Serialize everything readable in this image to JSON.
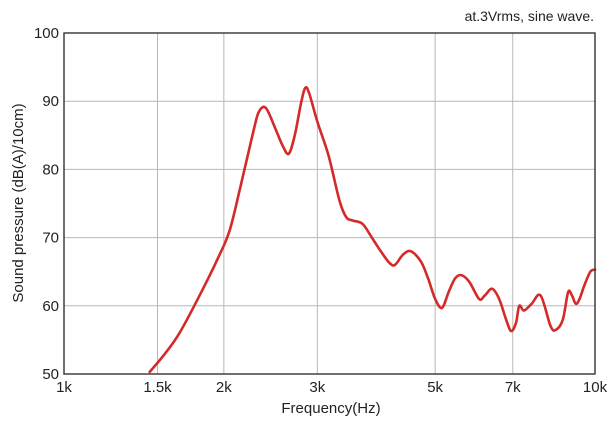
{
  "colors": {
    "line": "#d42a2a",
    "grid": "#b8b8b8",
    "frame": "#333333",
    "text": "#222222"
  },
  "chart_data": {
    "type": "line",
    "annotation": "at.3Vrms, sine wave.",
    "xlabel": "Frequency(Hz)",
    "ylabel": "Sound pressure (dB(A)/10cm)",
    "xscale": "log",
    "xlim": [
      1000,
      10000
    ],
    "ylim": [
      50,
      100
    ],
    "grid": true,
    "x_ticks": [
      {
        "value": 1000,
        "label": "1k"
      },
      {
        "value": 1500,
        "label": "1.5k"
      },
      {
        "value": 2000,
        "label": "2k"
      },
      {
        "value": 3000,
        "label": "3k"
      },
      {
        "value": 5000,
        "label": "5k"
      },
      {
        "value": 7000,
        "label": "7k"
      },
      {
        "value": 10000,
        "label": "10k"
      }
    ],
    "y_ticks": [
      {
        "value": 50,
        "label": "50"
      },
      {
        "value": 60,
        "label": "60"
      },
      {
        "value": 70,
        "label": "70"
      },
      {
        "value": 80,
        "label": "80"
      },
      {
        "value": 90,
        "label": "90"
      },
      {
        "value": 100,
        "label": "100"
      }
    ],
    "series": [
      {
        "x": [
          1450,
          1550,
          1650,
          1800,
          1950,
          2050,
          2150,
          2280,
          2330,
          2400,
          2500,
          2580,
          2650,
          2720,
          2800,
          2850,
          2900,
          3000,
          3150,
          3300,
          3400,
          3500,
          3650,
          3800,
          3950,
          4100,
          4200,
          4350,
          4500,
          4700,
          4850,
          5000,
          5150,
          5300,
          5450,
          5600,
          5800,
          6050,
          6200,
          6400,
          6600,
          6800,
          6950,
          7100,
          7200,
          7350,
          7600,
          7900,
          8250,
          8450,
          8700,
          8900,
          9050,
          9200,
          9350,
          9550,
          9800,
          10000
        ],
        "y": [
          50.3,
          53.0,
          56.0,
          61.5,
          67.0,
          71.0,
          77.5,
          86.0,
          88.5,
          89.0,
          86.0,
          83.5,
          82.3,
          85.0,
          90.0,
          92.0,
          91.0,
          87.0,
          82.0,
          75.5,
          73.0,
          72.5,
          72.0,
          70.0,
          68.0,
          66.3,
          66.0,
          67.5,
          68.0,
          66.5,
          64.0,
          61.0,
          59.7,
          62.0,
          64.0,
          64.5,
          63.5,
          61.0,
          61.5,
          62.5,
          61.0,
          58.0,
          56.3,
          57.5,
          60.0,
          59.3,
          60.3,
          61.5,
          57.0,
          56.5,
          58.0,
          62.0,
          61.5,
          60.3,
          61.0,
          63.0,
          65.0,
          65.3
        ]
      }
    ]
  }
}
